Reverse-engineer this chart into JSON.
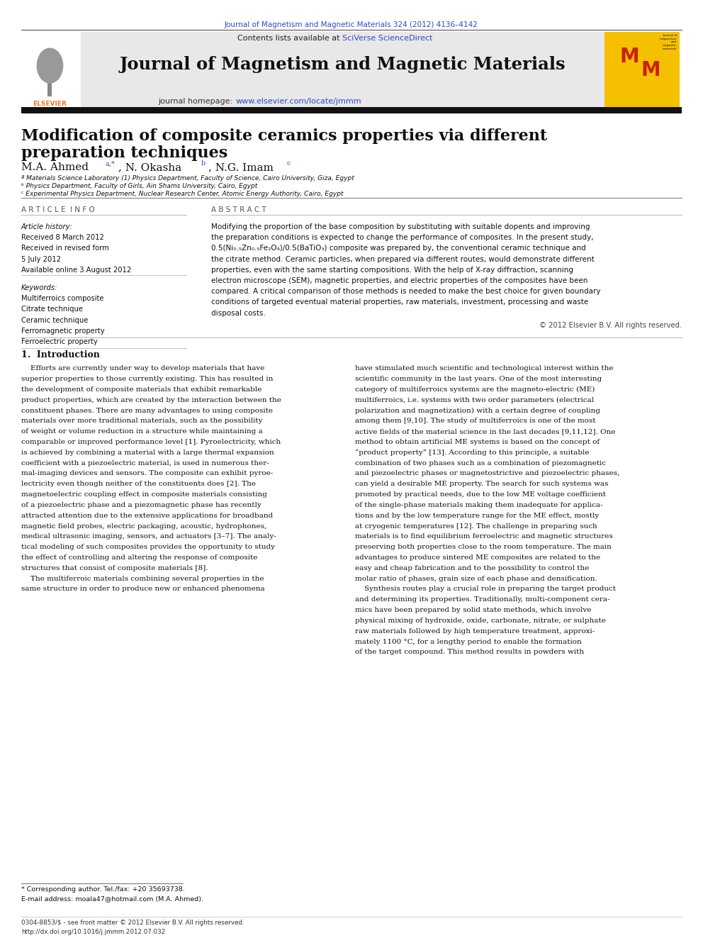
{
  "page_width": 9.92,
  "page_height": 13.23,
  "bg_color": "#ffffff",
  "top_citation": "Journal of Magnetism and Magnetic Materials 324 (2012) 4136–4142",
  "top_citation_color": "#2a4bcc",
  "journal_name": "Journal of Magnetism and Magnetic Materials",
  "sciverse_color": "#2a4bcc",
  "homepage_color": "#2a4bcc",
  "header_bg": "#e8e8e8",
  "elsevier_color": "#e87722",
  "article_title_line1": "Modification of composite ceramics properties via different",
  "article_title_line2": "preparation techniques",
  "affil_a": "ª Materials Science Laboratory (1) Physics Department, Faculty of Science, Cairo University, Giza, Egypt",
  "affil_b": "ᵇ Physics Department, Faculty of Girls, Ain Shams University, Cairo, Egypt",
  "affil_c": "ᶜ Experimental Physics Department, Nuclear Research Center, Atomic Energy Authority, Cairo, Egypt",
  "section_article_info": "A R T I C L E  I N F O",
  "section_abstract": "A B S T R A C T",
  "article_history_label": "Article history:",
  "received": "Received 8 March 2012",
  "received_revised": "Received in revised form",
  "revised_date": "5 July 2012",
  "available": "Available online 3 August 2012",
  "keywords_label": "Keywords:",
  "keywords": [
    "Multiferroics composite",
    "Citrate technique",
    "Ceramic technique",
    "Ferromagnetic property",
    "Ferroelectric property"
  ],
  "copyright": "© 2012 Elsevier B.V. All rights reserved.",
  "intro_heading": "1.  Introduction",
  "footnote_line1": "* Corresponding author. Tel./fax: +20 35693738.",
  "footnote_line2": "E-mail address: moala47@hotmail.com (M.A. Ahmed).",
  "footer_line1": "0304-8853/$ - see front matter © 2012 Elsevier B.V. All rights reserved.",
  "footer_line2": "http://dx.doi.org/10.1016/j.jmmm.2012.07.032"
}
